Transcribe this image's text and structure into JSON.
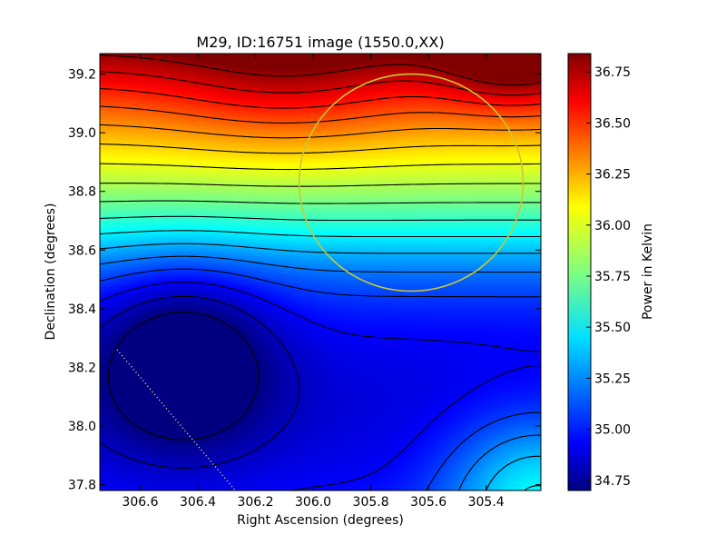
{
  "chart_data": {
    "type": "heatmap",
    "title": "M29, ID:16751 image (1550.0,XX)",
    "xlabel": "Right Ascension (degrees)",
    "ylabel": "Declination (degrees)",
    "x_reversed": true,
    "xlim": [
      306.74,
      305.21
    ],
    "ylim": [
      37.78,
      39.27
    ],
    "x_ticks": [
      "306.6",
      "306.4",
      "306.2",
      "306.0",
      "305.8",
      "305.6",
      "305.4"
    ],
    "x_tick_values": [
      306.6,
      306.4,
      306.2,
      306.0,
      305.8,
      305.6,
      305.4
    ],
    "y_ticks": [
      "37.8",
      "38.0",
      "38.2",
      "38.4",
      "38.6",
      "38.8",
      "39.0",
      "39.2"
    ],
    "y_tick_values": [
      37.8,
      38.0,
      38.2,
      38.4,
      38.6,
      38.8,
      39.0,
      39.2
    ],
    "colorbar": {
      "label": "Power in Kelvin",
      "range": [
        34.7,
        36.84
      ],
      "ticks": [
        "34.75",
        "35.00",
        "35.25",
        "35.50",
        "35.75",
        "36.00",
        "36.25",
        "36.50",
        "36.75"
      ],
      "tick_values": [
        34.75,
        35.0,
        35.25,
        35.5,
        35.75,
        36.0,
        36.25,
        36.5,
        36.75
      ],
      "colormap": "jet"
    },
    "contour_color": "#000000",
    "annotations": [
      {
        "type": "circle",
        "color": "#c8c832",
        "center_ra": 305.66,
        "center_dec": 38.83,
        "radius_deg": 0.37
      },
      {
        "type": "dotted-line",
        "color": "#e6e6a0",
        "from_ra": 306.68,
        "from_dec": 38.26,
        "to_ra": 306.27,
        "to_dec": 37.78
      }
    ]
  }
}
